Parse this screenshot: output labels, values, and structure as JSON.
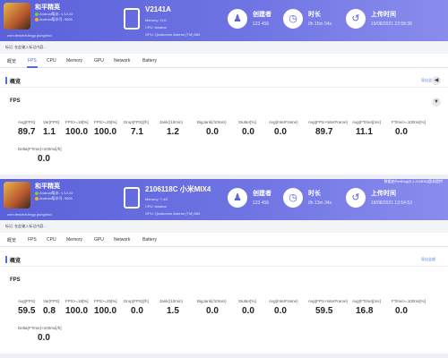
{
  "reports": [
    {
      "app": {
        "name": "和平精英",
        "android_version": "Android版本: 1.14.10",
        "android_code": "Android版本号: 9600",
        "package": "com.tencent.tmgp.pubgmhd"
      },
      "device": {
        "name": "V2141A",
        "memory": "Memory: 11G",
        "cpu": "CPU: lahaina",
        "gpu": "GPU: Qualcomm Adreno (TM) 660"
      },
      "stats": [
        {
          "label": "创建者",
          "value": "123 456",
          "icon": "user-icon"
        },
        {
          "label": "时长",
          "value": "0h 16m 54s",
          "icon": "clock-icon"
        },
        {
          "label": "上传时间",
          "value": "19/08/2021 22:58:38",
          "icon": "history-icon"
        }
      ],
      "tag_label": "标记: 在此输入标记内容...",
      "fps_metrics": [
        {
          "label": "Avg(FPS)",
          "value": "89.7"
        },
        {
          "label": "Var(FPS)",
          "value": "1.1"
        },
        {
          "label": "FPS>=18[%]",
          "value": "100.0"
        },
        {
          "label": "FPS>=25[%]",
          "value": "100.0"
        },
        {
          "label": "Drop(FPS)[/h]",
          "value": "7.1"
        },
        {
          "label": "Jank(/10min)",
          "value": "1.2"
        },
        {
          "label": "BigJank(/10min)",
          "value": "0.0"
        },
        {
          "label": "Stutter[%]",
          "value": "0.0"
        },
        {
          "label": "Avg(InterFrame)",
          "value": "0.0"
        },
        {
          "label": "Avg(FPS+InterFrame)",
          "value": "89.7"
        },
        {
          "label": "Avg(FTime)[ms]",
          "value": "11.1"
        },
        {
          "label": "FTime>=100ms[%]",
          "value": "0.0"
        }
      ],
      "delta": {
        "label": "Delta(FTime)>100ms[/h]",
        "value": "0.0"
      }
    },
    {
      "app": {
        "name": "和平精英",
        "android_version": "Android版本: 1.14.10",
        "android_code": "Android版本号: 9600",
        "package": "com.tencent.tmgp.pubgmhd"
      },
      "device": {
        "name": "2106118C 小米MIX4",
        "memory": "Memory: 7.4G",
        "cpu": "CPU: lahaina",
        "gpu": "GPU: Qualcomm Adreno (TM) 660"
      },
      "stats": [
        {
          "label": "创建者",
          "value": "123 456",
          "icon": "user-icon"
        },
        {
          "label": "时长",
          "value": "0h 13m 34s",
          "icon": "clock-icon"
        },
        {
          "label": "上传时间",
          "value": "18/08/2021 13:54:53",
          "icon": "history-icon"
        }
      ],
      "tag_label": "标记: 在此输入标记内容...",
      "fps_metrics": [
        {
          "label": "Avg(FPS)",
          "value": "59.5"
        },
        {
          "label": "Var(FPS)",
          "value": "0.8"
        },
        {
          "label": "FPS>=18[%]",
          "value": "100.0"
        },
        {
          "label": "FPS>=25[%]",
          "value": "100.0"
        },
        {
          "label": "Drop(FPS)[/h]",
          "value": "0.0"
        },
        {
          "label": "Jank(/10min)",
          "value": "1.5"
        },
        {
          "label": "BigJank(/10min)",
          "value": "0.0"
        },
        {
          "label": "Stutter[%]",
          "value": "0.0"
        },
        {
          "label": "Avg(InterFrame)",
          "value": "0.0"
        },
        {
          "label": "Avg(FPS+InterFrame)",
          "value": "59.5"
        },
        {
          "label": "Avg(FTime)[ms]",
          "value": "16.8"
        },
        {
          "label": "FTime>=100ms[%]",
          "value": "0.0"
        }
      ],
      "delta": {
        "label": "Delta(FTime)>100ms[/h]",
        "value": "0.0"
      }
    }
  ],
  "generated_by": "数据由PerfDog(5.1.210830)版本提供",
  "tabs": [
    "概览",
    "FPS",
    "CPU",
    "Memory",
    "GPU",
    "Network",
    "Battery"
  ],
  "overview_title": "概览",
  "export_label": "导出全部",
  "fps_title": "FPS",
  "colors": {
    "header_start": "#5a62d9",
    "header_end": "#8a8cec",
    "accent": "#4a6fd6",
    "android_dot": "#7ac943",
    "code_dot": "#f2b233"
  }
}
